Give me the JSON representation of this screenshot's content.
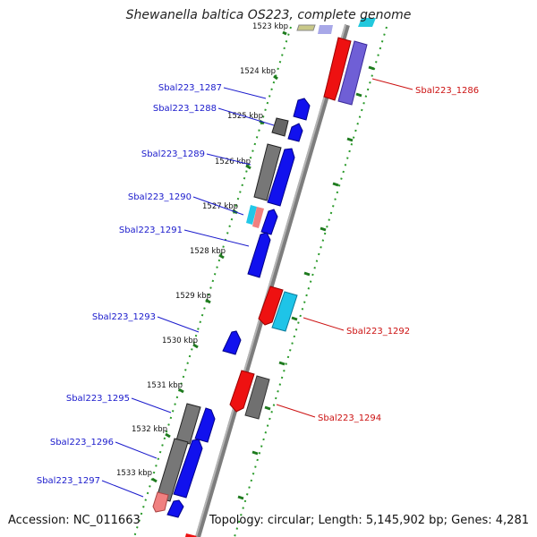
{
  "title": "Shewanella baltica OS223, complete genome",
  "accession": "Accession: NC_011663",
  "summary": "Topology: circular; Length: 5,145,902 bp; Genes: 4,281",
  "colors": {
    "label_left": "#1a1acc",
    "label_right": "#cc1111",
    "backbone": "#888888",
    "tick": "#1e7a1e",
    "dotted": "#2a9a2a"
  },
  "scale_labels": [
    "1523 kbp",
    "1524 kbp",
    "1525 kbp",
    "1526 kbp",
    "1527 kbp",
    "1528 kbp",
    "1529 kbp",
    "1530 kbp",
    "1531 kbp",
    "1532 kbp",
    "1533 kbp"
  ],
  "genes_left": [
    "Sbal223_1287",
    "Sbal223_1288",
    "Sbal223_1289",
    "Sbal223_1290",
    "Sbal223_1291",
    "Sbal223_1293",
    "Sbal223_1295",
    "Sbal223_1296",
    "Sbal223_1297"
  ],
  "genes_right": [
    "Sbal223_1286",
    "Sbal223_1292",
    "Sbal223_1294"
  ]
}
